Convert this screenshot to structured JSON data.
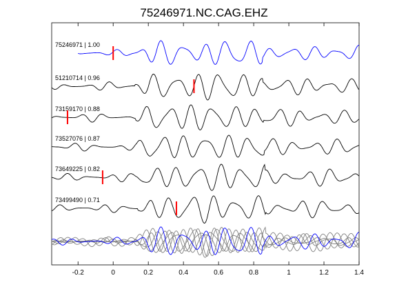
{
  "chart_data": {
    "type": "line",
    "title": "75246971.NC.CAG.EHZ",
    "xlim": [
      -0.35,
      1.4
    ],
    "xticks": [
      -0.2,
      0,
      0.2,
      0.4,
      0.6,
      0.8,
      1,
      1.2,
      1.4
    ],
    "xtick_labels": [
      "-0.2",
      "0",
      "0.2",
      "0.4",
      "0.6",
      "0.8",
      "1",
      "1.2",
      "1.4"
    ],
    "grid": false,
    "colors": {
      "master": "#0000ff",
      "trace": "#000000",
      "pick": "#ff0000",
      "stack": "#808080"
    },
    "series": [
      {
        "name": "75246971 | 1.00",
        "label": "75246971 | 1.00",
        "pick": 0.0,
        "color": "#0000ff"
      },
      {
        "name": "51210714 | 0.96",
        "label": "51210714 | 0.96",
        "pick": 0.46,
        "color": "#000000"
      },
      {
        "name": "73159170 | 0.88",
        "label": "73159170 | 0.88",
        "pick": -0.26,
        "color": "#000000"
      },
      {
        "name": "73527076 | 0.87",
        "label": "73527076 | 0.87",
        "pick": null,
        "color": "#000000"
      },
      {
        "name": "73649225 | 0.82",
        "label": "73649225 | 0.82",
        "pick": -0.06,
        "color": "#000000"
      },
      {
        "name": "73499490 | 0.71",
        "label": "73499490 | 0.71",
        "pick": 0.36,
        "color": "#000000"
      }
    ],
    "overlay_panel": {
      "description": "all traces overlaid",
      "n_gray": 5,
      "n_blue": 1
    }
  }
}
